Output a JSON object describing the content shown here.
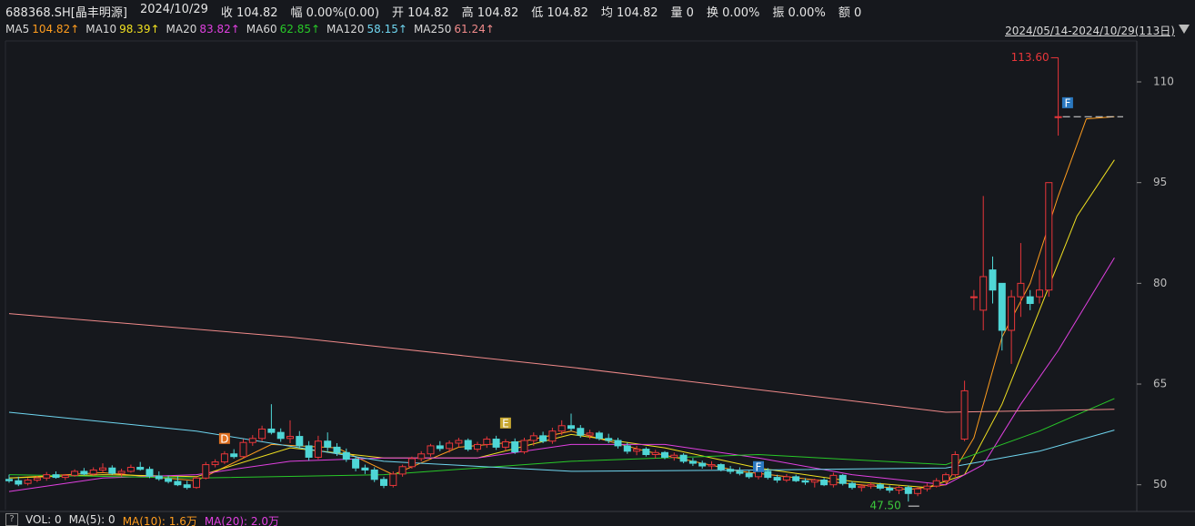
{
  "chart_data": {
    "type": "candlestick",
    "header": [
      "688368.SH[晶丰明源]",
      "2024/10/29",
      "收 104.82",
      "幅 0.00%(0.00)",
      "开 104.82",
      "高 104.82",
      "低 104.82",
      "均 104.82",
      "量 0",
      "换 0.00%",
      "振 0.00%",
      "额 0"
    ],
    "date_range": "2024/05/14-2024/10/29(113日)",
    "ylim": [
      46.3,
      116.1
    ],
    "yticks": [
      50,
      65,
      80,
      95,
      110
    ],
    "up_color": "#e8363a",
    "down_color": "#4fd6d6",
    "candles": [
      [
        50.8,
        51.5,
        50.3,
        50.6
      ],
      [
        50.6,
        51.2,
        49.8,
        50.1
      ],
      [
        50.2,
        51.0,
        49.9,
        50.7
      ],
      [
        50.7,
        51.3,
        50.4,
        51.0
      ],
      [
        51.0,
        51.9,
        50.6,
        51.5
      ],
      [
        51.5,
        52.0,
        50.9,
        51.1
      ],
      [
        51.1,
        51.6,
        50.7,
        51.4
      ],
      [
        51.4,
        52.3,
        51.2,
        52.0
      ],
      [
        52.0,
        52.5,
        51.4,
        51.6
      ],
      [
        51.6,
        52.6,
        51.3,
        52.2
      ],
      [
        52.2,
        53.2,
        51.8,
        52.5
      ],
      [
        52.5,
        52.9,
        51.5,
        51.7
      ],
      [
        51.7,
        52.4,
        51.2,
        52.0
      ],
      [
        52.0,
        53.0,
        51.8,
        52.6
      ],
      [
        52.6,
        53.4,
        52.1,
        52.3
      ],
      [
        52.3,
        52.7,
        51.0,
        51.3
      ],
      [
        51.3,
        52.0,
        50.6,
        50.9
      ],
      [
        50.9,
        51.4,
        50.2,
        50.5
      ],
      [
        50.5,
        51.3,
        49.8,
        50.0
      ],
      [
        50.0,
        50.6,
        49.3,
        49.6
      ],
      [
        49.6,
        51.2,
        49.4,
        51.0
      ],
      [
        51.0,
        53.4,
        50.8,
        53.0
      ],
      [
        53.0,
        53.8,
        52.6,
        53.4
      ],
      [
        53.4,
        55.0,
        53.1,
        54.6
      ],
      [
        54.6,
        55.3,
        53.9,
        54.2
      ],
      [
        54.2,
        56.8,
        54.0,
        56.3
      ],
      [
        56.3,
        57.4,
        55.8,
        56.9
      ],
      [
        56.9,
        58.8,
        56.5,
        58.3
      ],
      [
        58.3,
        62.0,
        57.5,
        57.8
      ],
      [
        57.8,
        58.4,
        56.4,
        56.9
      ],
      [
        56.9,
        59.6,
        56.2,
        57.2
      ],
      [
        57.2,
        58.0,
        55.4,
        55.8
      ],
      [
        55.8,
        56.5,
        53.6,
        54.1
      ],
      [
        54.1,
        57.3,
        53.8,
        56.5
      ],
      [
        56.5,
        57.8,
        55.0,
        55.6
      ],
      [
        55.6,
        56.2,
        54.3,
        54.8
      ],
      [
        54.8,
        55.4,
        53.4,
        53.8
      ],
      [
        53.8,
        54.3,
        52.0,
        52.5
      ],
      [
        52.5,
        53.0,
        51.6,
        52.2
      ],
      [
        52.2,
        52.6,
        50.4,
        50.8
      ],
      [
        50.8,
        51.2,
        49.5,
        49.9
      ],
      [
        49.9,
        52.0,
        49.6,
        51.6
      ],
      [
        51.6,
        53.0,
        51.2,
        52.7
      ],
      [
        52.7,
        54.2,
        52.4,
        53.9
      ],
      [
        53.9,
        55.0,
        53.5,
        54.6
      ],
      [
        54.6,
        56.1,
        54.2,
        55.8
      ],
      [
        55.8,
        56.5,
        55.0,
        55.4
      ],
      [
        55.4,
        56.6,
        54.8,
        56.2
      ],
      [
        56.2,
        57.0,
        55.6,
        56.6
      ],
      [
        56.6,
        56.9,
        55.0,
        55.3
      ],
      [
        55.3,
        56.4,
        54.9,
        56.0
      ],
      [
        56.0,
        57.2,
        55.5,
        56.8
      ],
      [
        56.8,
        57.3,
        55.2,
        55.6
      ],
      [
        55.6,
        56.8,
        55.0,
        56.4
      ],
      [
        56.4,
        56.9,
        54.6,
        54.9
      ],
      [
        54.9,
        57.0,
        54.6,
        56.6
      ],
      [
        56.6,
        57.8,
        55.8,
        57.3
      ],
      [
        57.3,
        57.9,
        56.2,
        56.5
      ],
      [
        56.5,
        58.5,
        56.1,
        58.0
      ],
      [
        58.0,
        59.6,
        57.4,
        58.8
      ],
      [
        58.8,
        60.6,
        58.0,
        58.4
      ],
      [
        58.4,
        58.9,
        57.0,
        57.4
      ],
      [
        57.4,
        58.2,
        56.8,
        57.7
      ],
      [
        57.7,
        58.0,
        56.6,
        56.9
      ],
      [
        56.9,
        57.6,
        56.2,
        56.6
      ],
      [
        56.6,
        57.0,
        55.4,
        55.8
      ],
      [
        55.8,
        56.3,
        54.6,
        55.0
      ],
      [
        55.0,
        55.8,
        54.4,
        55.3
      ],
      [
        55.3,
        55.6,
        54.2,
        54.5
      ],
      [
        54.5,
        55.2,
        53.9,
        54.8
      ],
      [
        54.8,
        55.0,
        53.8,
        54.1
      ],
      [
        54.1,
        54.8,
        53.6,
        54.4
      ],
      [
        54.4,
        54.7,
        53.2,
        53.5
      ],
      [
        53.5,
        54.0,
        52.8,
        53.2
      ],
      [
        53.2,
        53.6,
        52.4,
        52.8
      ],
      [
        52.8,
        53.5,
        52.3,
        53.0
      ],
      [
        53.0,
        53.2,
        52.0,
        52.3
      ],
      [
        52.3,
        52.8,
        51.6,
        52.0
      ],
      [
        52.0,
        52.6,
        51.4,
        51.7
      ],
      [
        51.7,
        52.1,
        50.9,
        51.2
      ],
      [
        51.2,
        52.4,
        50.8,
        52.0
      ],
      [
        52.0,
        52.5,
        50.8,
        51.1
      ],
      [
        51.1,
        51.5,
        50.3,
        50.7
      ],
      [
        50.7,
        51.6,
        50.4,
        51.2
      ],
      [
        51.2,
        51.5,
        50.4,
        50.6
      ],
      [
        50.6,
        51.0,
        50.0,
        50.4
      ],
      [
        50.4,
        50.9,
        49.6,
        50.7
      ],
      [
        50.7,
        51.0,
        49.8,
        50.0
      ],
      [
        50.0,
        51.8,
        49.6,
        51.4
      ],
      [
        51.4,
        51.6,
        49.9,
        50.2
      ],
      [
        50.2,
        50.5,
        49.3,
        49.6
      ],
      [
        49.6,
        50.1,
        49.0,
        49.8
      ],
      [
        49.8,
        50.4,
        49.4,
        50.0
      ],
      [
        50.0,
        50.3,
        49.2,
        49.5
      ],
      [
        49.5,
        49.9,
        48.8,
        49.2
      ],
      [
        49.2,
        49.8,
        48.6,
        49.6
      ],
      [
        49.6,
        49.9,
        47.5,
        48.7
      ],
      [
        48.7,
        49.7,
        48.3,
        49.4
      ],
      [
        49.4,
        50.2,
        49.0,
        49.8
      ],
      [
        49.8,
        51.0,
        49.6,
        50.6
      ],
      [
        50.6,
        51.8,
        50.2,
        51.5
      ],
      [
        51.5,
        55.0,
        51.2,
        54.5
      ],
      [
        56.8,
        65.5,
        56.5,
        64.0
      ],
      [
        78,
        79,
        76,
        78
      ],
      [
        76,
        93,
        73,
        81
      ],
      [
        82,
        84,
        77,
        79
      ],
      [
        80,
        80,
        70,
        73
      ],
      [
        73,
        79,
        68,
        78
      ],
      [
        78,
        86,
        75,
        80
      ],
      [
        78,
        79,
        76,
        77
      ],
      [
        78,
        82,
        77,
        79
      ],
      [
        79,
        95,
        78,
        95
      ],
      [
        104.82,
        113.6,
        102,
        104.82
      ]
    ],
    "series": [
      {
        "name": "MA5",
        "value_label": "104.82↑",
        "color": "#ff9d1e",
        "x": [
          0,
          10,
          20,
          28,
          35,
          41,
          48,
          55,
          60,
          68,
          78,
          88,
          96,
          100,
          103,
          106,
          109,
          112,
          115,
          118
        ],
        "values": [
          51,
          51.8,
          50.6,
          56,
          55.5,
          51.5,
          55.6,
          56.5,
          58,
          55,
          52,
          50.4,
          49.3,
          50,
          57,
          72,
          80,
          93,
          104.5,
          104.82
        ]
      },
      {
        "name": "MA10",
        "value_label": "98.39↑",
        "color": "#f0e020",
        "x": [
          0,
          10,
          20,
          30,
          40,
          50,
          60,
          70,
          80,
          90,
          98,
          102,
          106,
          110,
          114,
          118
        ],
        "values": [
          51,
          51.5,
          51.2,
          55.5,
          54,
          54,
          57.5,
          55.5,
          52.5,
          50.5,
          49.6,
          51.5,
          62,
          76,
          90,
          98.39
        ]
      },
      {
        "name": "MA20",
        "value_label": "83.82↑",
        "color": "#e040e0",
        "x": [
          0,
          10,
          20,
          30,
          40,
          50,
          60,
          70,
          80,
          90,
          100,
          104,
          108,
          112,
          118
        ],
        "values": [
          49,
          51,
          51.5,
          53.5,
          54,
          54,
          56,
          56,
          54,
          51.5,
          50,
          53,
          62,
          70,
          83.82
        ]
      },
      {
        "name": "MA60",
        "value_label": "62.85↑",
        "color": "#28c828",
        "x": [
          0,
          20,
          40,
          60,
          80,
          100,
          104,
          110,
          118
        ],
        "values": [
          51.5,
          51,
          51.5,
          53.5,
          54.5,
          53,
          55,
          58,
          62.85
        ]
      },
      {
        "name": "MA120",
        "value_label": "58.15↑",
        "color": "#6fd6f0",
        "x": [
          0,
          20,
          40,
          60,
          80,
          100,
          110,
          118
        ],
        "values": [
          60.8,
          58,
          53.5,
          52,
          52.2,
          52.5,
          55,
          58.15
        ]
      },
      {
        "name": "MA250",
        "value_label": "61.24↑",
        "color": "#f08a8a",
        "x": [
          0,
          30,
          60,
          90,
          100,
          118
        ],
        "values": [
          75.5,
          72,
          67.5,
          62.5,
          60.8,
          61.24
        ]
      }
    ],
    "high_label": {
      "text": "113.60",
      "value": 113.6,
      "x": 112
    },
    "low_label": {
      "text": "47.50",
      "value": 47.5,
      "x": 96
    },
    "markers": [
      {
        "label": "D",
        "color": "#e07020",
        "x": 23,
        "value": 56.9
      },
      {
        "label": "E",
        "color": "#c8a830",
        "x": 53,
        "value": 59.2
      },
      {
        "label": "F",
        "color": "#2a78c0",
        "x": 80,
        "value": 52.7
      },
      {
        "label": "F",
        "color": "#2a78c0",
        "x": 113,
        "value": 106.9
      }
    ],
    "volume_legend": [
      {
        "text": "VOL: 0",
        "color": "#e0e0e0"
      },
      {
        "text": "MA(5): 0",
        "color": "#e0e0e0"
      },
      {
        "text": "MA(10): 1.6万",
        "color": "#ff9d1e"
      },
      {
        "text": "MA(20): 2.0万",
        "color": "#e040e0"
      }
    ]
  }
}
